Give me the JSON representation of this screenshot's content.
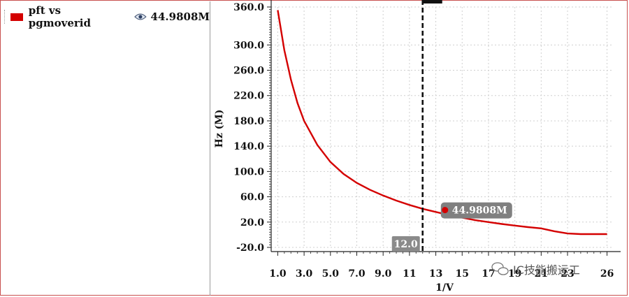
{
  "legend": {
    "series_label": "pft vs pgmoverid",
    "value": "44.9808M",
    "color": "#d40000",
    "icon": "eye-icon"
  },
  "chart_data": {
    "type": "line",
    "title": "",
    "xlabel": "1/V",
    "ylabel": "Hz (M)",
    "xlim": [
      0.5,
      26.5
    ],
    "ylim": [
      -20,
      360
    ],
    "grid": true,
    "x_ticks": [
      1.0,
      3.0,
      5.0,
      7.0,
      9.0,
      11,
      13,
      15,
      17,
      19,
      21,
      23,
      26
    ],
    "x_tick_labels": [
      "1.0",
      "3.0",
      "5.0",
      "7.0",
      "9.0",
      "11",
      "13",
      "15",
      "17",
      "19",
      "21",
      "23",
      "26"
    ],
    "y_ticks": [
      -20,
      20,
      60,
      100,
      140,
      180,
      220,
      260,
      300,
      360
    ],
    "y_tick_labels": [
      "-20.0",
      "20.0",
      "60.0",
      "100.0",
      "140.0",
      "180.0",
      "220.0",
      "260.0",
      "300.0",
      "360.0"
    ],
    "series": [
      {
        "name": "pft vs pgmoverid",
        "color": "#d40000",
        "x": [
          1.0,
          1.5,
          2.0,
          2.5,
          3.0,
          4.0,
          5.0,
          6.0,
          7.0,
          8.0,
          9.0,
          10.0,
          11.0,
          12.0,
          13.0,
          14.0,
          15.0,
          16.0,
          17.0,
          18.0,
          19.0,
          20.0,
          21.0,
          22.0,
          23.0,
          24.0,
          25.0,
          26.0
        ],
        "y": [
          355,
          292,
          245,
          208,
          180,
          142,
          115,
          96,
          82,
          71,
          62,
          54,
          47,
          41,
          36,
          31,
          27,
          23,
          20,
          17,
          14.5,
          12,
          10,
          5.5,
          2,
          1,
          1,
          1
        ]
      }
    ],
    "marker": {
      "x": 12.0,
      "label": "12.0"
    },
    "annotation": {
      "x": 13.7,
      "y": 39,
      "label": "44.9808M"
    }
  },
  "watermark": "IC技能搬运工"
}
